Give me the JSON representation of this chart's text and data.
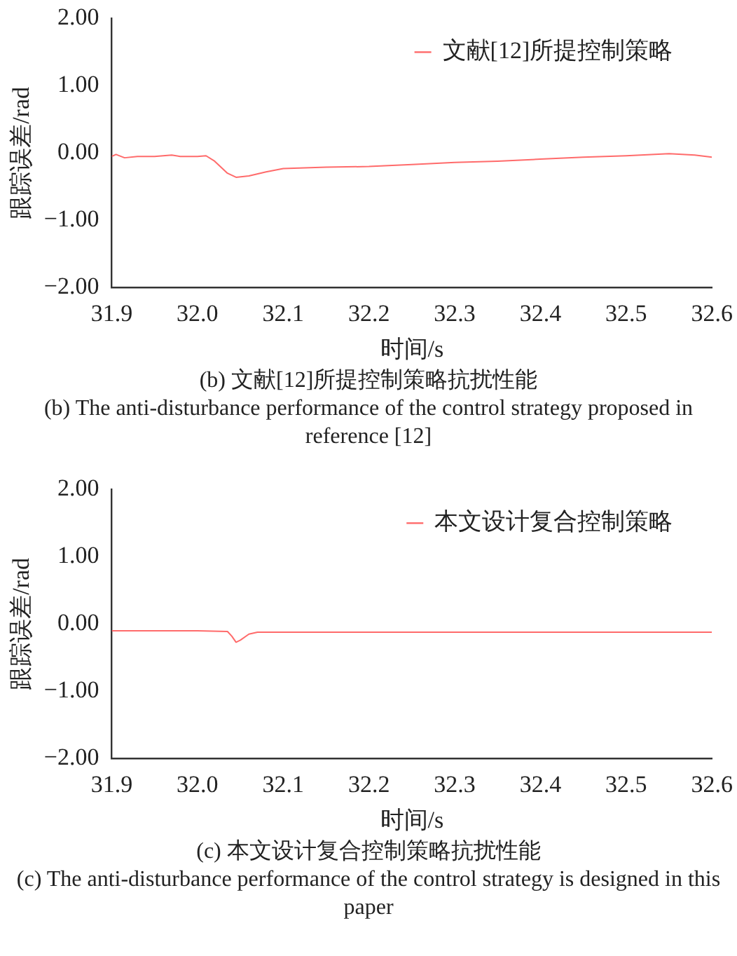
{
  "chart_data": [
    {
      "type": "line",
      "xlabel": "时间/s",
      "ylabel": "跟踪误差/rad",
      "xlim": [
        31.9,
        32.6
      ],
      "xticks": [
        31.9,
        {
          "value": 32,
          "label": "32.0"
        },
        32.1,
        32.2,
        32.3,
        32.4,
        32.5,
        32.6
      ],
      "ylim": [
        -2,
        2
      ],
      "yticks": [
        {
          "value": -2,
          "label": "−2.00"
        },
        {
          "value": -1,
          "label": "−1.00"
        },
        {
          "value": 0,
          "label": "0.00"
        },
        {
          "value": 1,
          "label": "1.00"
        },
        {
          "value": 2,
          "label": "2.00"
        }
      ],
      "grid": false,
      "legend": "top right",
      "marker": "none",
      "line_style": "solid",
      "annotations": [
        "(b) 文献[12]所提控制策略抗扰性能",
        "(b) The anti-disturbance performance of the control strategy proposed in reference [12]"
      ],
      "series": [
        {
          "name": "文献[12]所提控制策略",
          "color": "#ff6b6b",
          "x": [
            31.9,
            31.905,
            31.915,
            31.93,
            31.95,
            31.97,
            31.98,
            32.0,
            32.01,
            32.02,
            32.035,
            32.045,
            32.06,
            32.08,
            32.1,
            32.15,
            32.2,
            32.25,
            32.3,
            32.35,
            32.4,
            32.45,
            32.5,
            32.55,
            32.58,
            32.6
          ],
          "values": [
            -0.05,
            -0.02,
            -0.07,
            -0.05,
            -0.05,
            -0.03,
            -0.05,
            -0.05,
            -0.04,
            -0.12,
            -0.3,
            -0.36,
            -0.34,
            -0.28,
            -0.23,
            -0.21,
            -0.2,
            -0.17,
            -0.14,
            -0.12,
            -0.09,
            -0.06,
            -0.04,
            -0.01,
            -0.03,
            -0.06
          ]
        }
      ]
    },
    {
      "type": "line",
      "xlabel": "时间/s",
      "ylabel": "跟踪误差/rad",
      "xlim": [
        31.9,
        32.6
      ],
      "xticks": [
        31.9,
        {
          "value": 32,
          "label": "32.0"
        },
        32.1,
        32.2,
        32.3,
        32.4,
        32.5,
        32.6
      ],
      "ylim": [
        -2,
        2
      ],
      "yticks": [
        {
          "value": -2,
          "label": "−2.00"
        },
        {
          "value": -1,
          "label": "−1.00"
        },
        {
          "value": 0,
          "label": "0.00"
        },
        {
          "value": 1,
          "label": "1.00"
        },
        {
          "value": 2,
          "label": "2.00"
        }
      ],
      "grid": false,
      "legend": "top right",
      "marker": "none",
      "line_style": "solid",
      "annotations": [
        "(c) 本文设计复合控制策略抗扰性能",
        "(c) The anti-disturbance performance of the control strategy is designed in this paper"
      ],
      "series": [
        {
          "name": "本文设计复合控制策略",
          "color": "#ff6b6b",
          "x": [
            31.9,
            31.95,
            32.0,
            32.035,
            32.04,
            32.045,
            32.05,
            32.06,
            32.07,
            32.1,
            32.2,
            32.3,
            32.4,
            32.5,
            32.6
          ],
          "values": [
            -0.1,
            -0.1,
            -0.1,
            -0.11,
            -0.18,
            -0.27,
            -0.24,
            -0.15,
            -0.12,
            -0.12,
            -0.12,
            -0.12,
            -0.12,
            -0.12,
            -0.12
          ]
        }
      ]
    }
  ]
}
